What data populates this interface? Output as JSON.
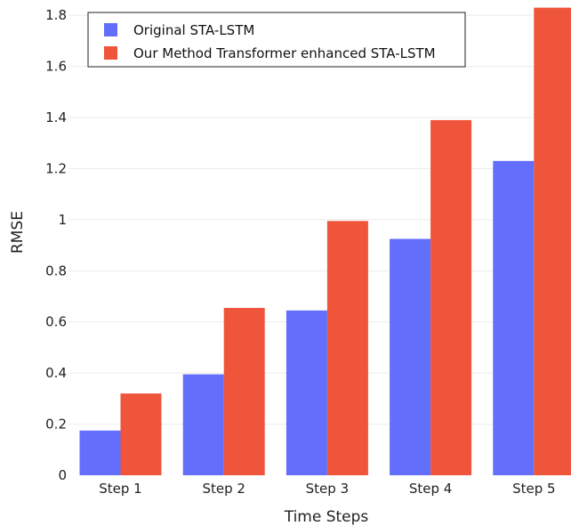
{
  "chart_data": {
    "type": "bar",
    "categories": [
      "Step 1",
      "Step 2",
      "Step 3",
      "Step 4",
      "Step 5"
    ],
    "series": [
      {
        "name": "Original STA-LSTM",
        "color": "#636efa",
        "values": [
          0.175,
          0.395,
          0.645,
          0.925,
          1.23
        ]
      },
      {
        "name": "Our Method Transformer enhanced STA-LSTM",
        "color": "#ef553b",
        "values": [
          0.32,
          0.655,
          0.995,
          1.39,
          1.83
        ]
      }
    ],
    "xlabel": "Time Steps",
    "ylabel": "RMSE",
    "ylim": [
      0,
      1.83
    ],
    "yticks": [
      0,
      0.2,
      0.4,
      0.6,
      0.8,
      1,
      1.2,
      1.4,
      1.6,
      1.8
    ],
    "ytick_labels": [
      "0",
      "0.2",
      "0.4",
      "0.6",
      "0.8",
      "1",
      "1.2",
      "1.4",
      "1.6",
      "1.8"
    ],
    "grid": true,
    "legend_position": "top-left"
  }
}
